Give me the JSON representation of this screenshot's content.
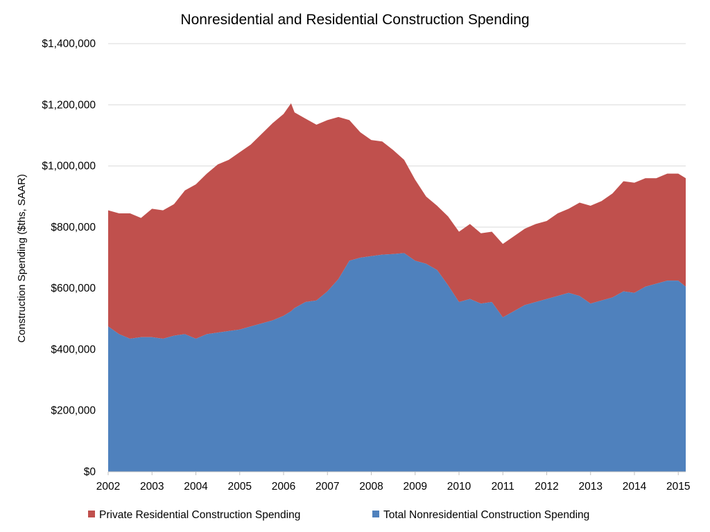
{
  "chart_data": {
    "type": "area",
    "stacked": true,
    "title": "Nonresidential and Residential Construction Spending",
    "ylabel": "Construction Spending ($ths, SAAR)",
    "xlabel": "",
    "xlim": [
      2002.0,
      2015.17
    ],
    "ylim": [
      0,
      1400000
    ],
    "y_tick_labels": [
      "$0",
      "$200,000",
      "$400,000",
      "$600,000",
      "$800,000",
      "$1,000,000",
      "$1,200,000",
      "$1,400,000"
    ],
    "x_tick_labels": [
      "2002",
      "2003",
      "2004",
      "2005",
      "2006",
      "2007",
      "2008",
      "2009",
      "2010",
      "2011",
      "2012",
      "2013",
      "2014",
      "2015"
    ],
    "grid": true,
    "legend": "bottom",
    "colors": {
      "residential": "#c0504d",
      "nonresidential": "#4f81bd"
    },
    "x": [
      2002.0,
      2002.25,
      2002.5,
      2002.75,
      2003.0,
      2003.25,
      2003.5,
      2003.75,
      2004.0,
      2004.25,
      2004.5,
      2004.75,
      2005.0,
      2005.25,
      2005.5,
      2005.75,
      2006.0,
      2006.17,
      2006.25,
      2006.5,
      2006.75,
      2007.0,
      2007.25,
      2007.5,
      2007.75,
      2008.0,
      2008.25,
      2008.5,
      2008.75,
      2009.0,
      2009.25,
      2009.5,
      2009.75,
      2010.0,
      2010.25,
      2010.5,
      2010.75,
      2011.0,
      2011.25,
      2011.5,
      2011.75,
      2012.0,
      2012.25,
      2012.5,
      2012.75,
      2013.0,
      2013.25,
      2013.5,
      2013.75,
      2014.0,
      2014.25,
      2014.5,
      2014.75,
      2015.0,
      2015.17
    ],
    "series": [
      {
        "name": "Total Nonresidential Construction Spending",
        "values": [
          475000,
          450000,
          435000,
          440000,
          440000,
          435000,
          445000,
          450000,
          435000,
          450000,
          455000,
          460000,
          465000,
          475000,
          485000,
          495000,
          510000,
          525000,
          535000,
          555000,
          560000,
          590000,
          630000,
          690000,
          700000,
          705000,
          710000,
          712000,
          715000,
          690000,
          680000,
          660000,
          610000,
          555000,
          565000,
          550000,
          555000,
          505000,
          525000,
          545000,
          555000,
          565000,
          575000,
          585000,
          575000,
          550000,
          560000,
          570000,
          590000,
          585000,
          605000,
          615000,
          625000,
          625000,
          605000
        ]
      },
      {
        "name": "Private Residential Construction Spending",
        "values": [
          380000,
          395000,
          410000,
          390000,
          420000,
          420000,
          430000,
          470000,
          505000,
          525000,
          550000,
          560000,
          580000,
          595000,
          620000,
          645000,
          660000,
          680000,
          640000,
          600000,
          575000,
          560000,
          530000,
          460000,
          410000,
          380000,
          370000,
          340000,
          305000,
          265000,
          220000,
          210000,
          225000,
          230000,
          245000,
          230000,
          230000,
          240000,
          245000,
          250000,
          255000,
          255000,
          270000,
          275000,
          305000,
          320000,
          325000,
          340000,
          360000,
          360000,
          355000,
          345000,
          350000,
          350000,
          355000
        ]
      }
    ]
  }
}
